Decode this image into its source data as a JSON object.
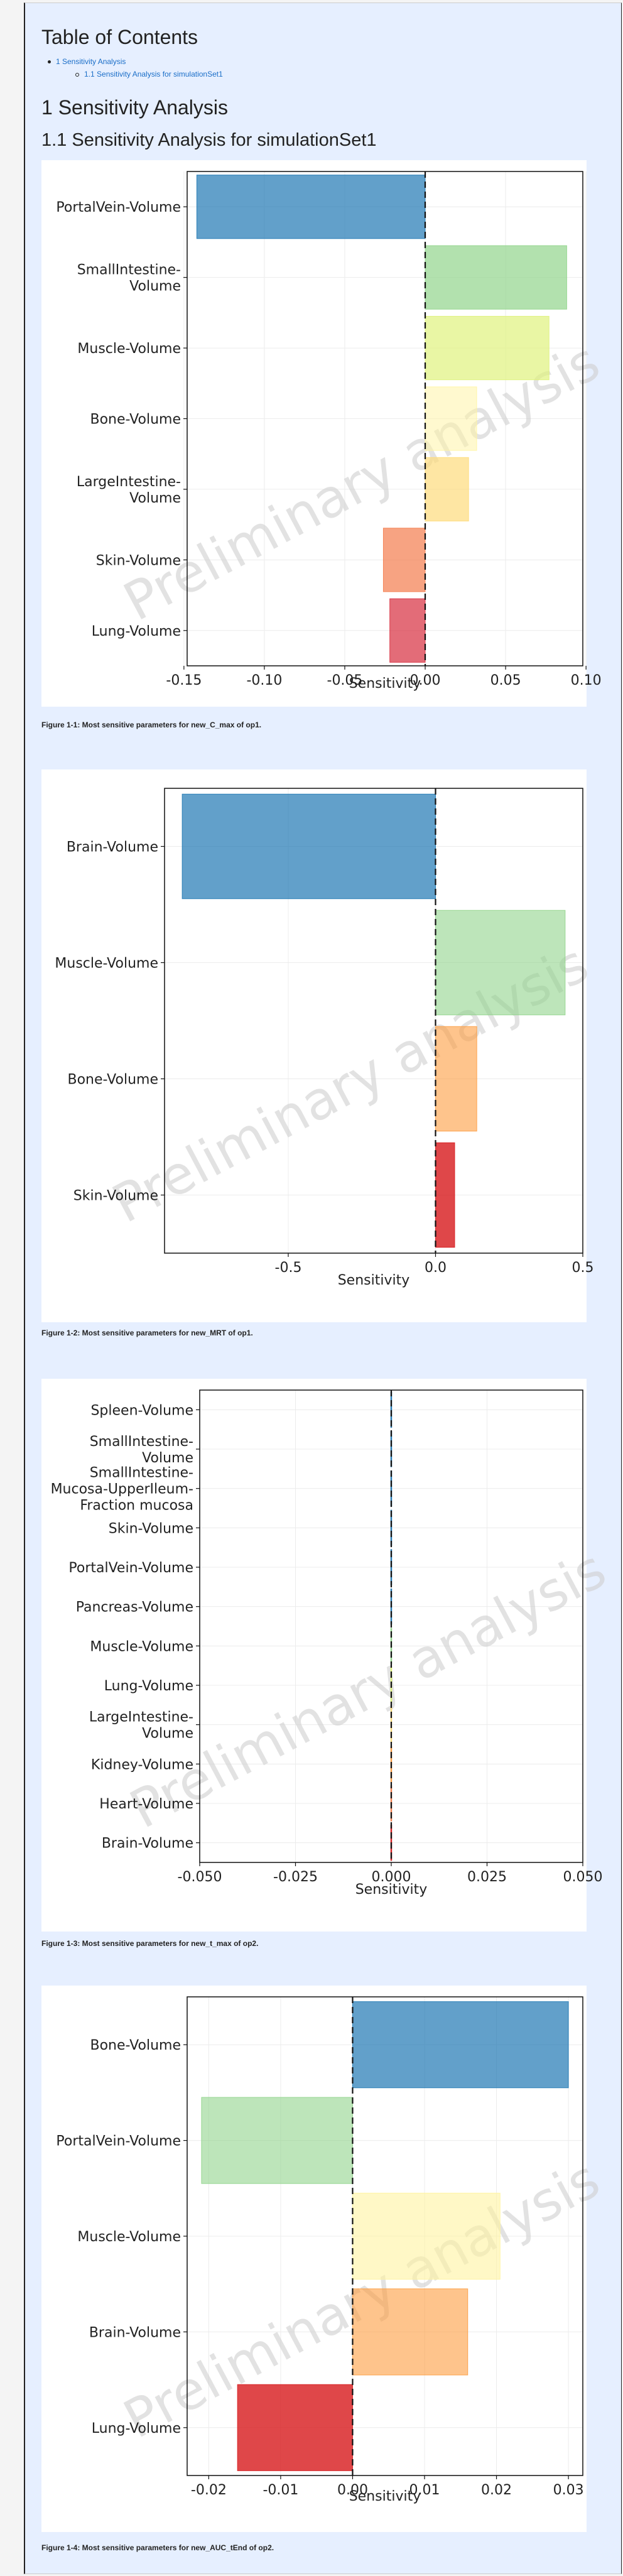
{
  "toc": {
    "title": "Table of Contents",
    "items": [
      {
        "label": "1 Sensitivity Analysis"
      },
      {
        "label": "1.1 Sensitivity Analysis for simulationSet1"
      }
    ]
  },
  "section": {
    "title": "1 Sensitivity Analysis"
  },
  "subsection": {
    "title": "1.1 Sensitivity Analysis for simulationSet1"
  },
  "watermark": "Preliminary analysis",
  "figures": [
    {
      "caption": "Figure 1-1: Most sensitive parameters for new_C_max of op1.",
      "xlabel": "Sensitivity",
      "chart_data": {
        "type": "bar",
        "orientation": "horizontal",
        "xlabel": "Sensitivity",
        "xlim": [
          -0.148,
          0.098
        ],
        "xticks": [
          -0.15,
          -0.1,
          -0.05,
          0.0,
          0.05,
          0.1
        ],
        "xtick_labels": [
          "-0.15",
          "-0.10",
          "-0.05",
          "0.00",
          "0.05",
          "0.10"
        ],
        "categories": [
          "PortalVein-Volume",
          "SmallIntestine-Volume",
          "Muscle-Volume",
          "Bone-Volume",
          "LargeIntestine-Volume",
          "Skin-Volume",
          "Lung-Volume"
        ],
        "category_labels": [
          [
            "PortalVein-Volume"
          ],
          [
            "SmallIntestine-",
            "Volume"
          ],
          [
            "Muscle-Volume"
          ],
          [
            "Bone-Volume"
          ],
          [
            "LargeIntestine-",
            "Volume"
          ],
          [
            "Skin-Volume"
          ],
          [
            "Lung-Volume"
          ]
        ],
        "values": [
          -0.142,
          0.088,
          0.077,
          0.032,
          0.027,
          -0.026,
          -0.022
        ],
        "colors": [
          "#1f78b4",
          "#91d48c",
          "#dff27d",
          "#fff4a0",
          "#fedc7c",
          "#f47c4d",
          "#d72e3f"
        ],
        "opacities": [
          0.7,
          0.7,
          0.7,
          0.5,
          0.7,
          0.7,
          0.7
        ],
        "grid": true
      }
    },
    {
      "caption": "Figure 1-2: Most sensitive parameters for new_MRT of op1.",
      "xlabel": "Sensitivity",
      "chart_data": {
        "type": "bar",
        "orientation": "horizontal",
        "xlabel": "Sensitivity",
        "xlim": [
          -0.92,
          0.5
        ],
        "xticks": [
          -0.5,
          0.0,
          0.5
        ],
        "xtick_labels": [
          "-0.5",
          "0.0",
          "0.5"
        ],
        "categories": [
          "Brain-Volume",
          "Muscle-Volume",
          "Bone-Volume",
          "Skin-Volume"
        ],
        "category_labels": [
          [
            "Brain-Volume"
          ],
          [
            "Muscle-Volume"
          ],
          [
            "Bone-Volume"
          ],
          [
            "Skin-Volume"
          ]
        ],
        "values": [
          -0.86,
          0.44,
          0.14,
          0.065
        ],
        "colors": [
          "#1f78b4",
          "#91d48c",
          "#fd9c3f",
          "#d7191c"
        ],
        "opacities": [
          0.7,
          0.6,
          0.6,
          0.8
        ],
        "grid": true
      }
    },
    {
      "caption": "Figure 1-3: Most sensitive parameters for new_t_max of op2.",
      "xlabel": "Sensitivity",
      "chart_data": {
        "type": "bar",
        "orientation": "horizontal",
        "xlabel": "Sensitivity",
        "xlim": [
          -0.05,
          0.05
        ],
        "xticks": [
          -0.05,
          -0.025,
          0.0,
          0.025,
          0.05
        ],
        "xtick_labels": [
          "-0.050",
          "-0.025",
          "0.000",
          "0.025",
          "0.050"
        ],
        "categories": [
          "Spleen-Volume",
          "SmallIntestine-Volume",
          "SmallIntestine-Mucosa-UpperIleum-Fraction mucosa",
          "Skin-Volume",
          "PortalVein-Volume",
          "Pancreas-Volume",
          "Muscle-Volume",
          "Lung-Volume",
          "LargeIntestine-Volume",
          "Kidney-Volume",
          "Heart-Volume",
          "Brain-Volume"
        ],
        "category_labels": [
          [
            "Spleen-Volume"
          ],
          [
            "SmallIntestine-",
            "Volume"
          ],
          [
            "SmallIntestine-",
            "Mucosa-UpperIleum-",
            "Fraction mucosa"
          ],
          [
            "Skin-Volume"
          ],
          [
            "PortalVein-Volume"
          ],
          [
            "Pancreas-Volume"
          ],
          [
            "Muscle-Volume"
          ],
          [
            "Lung-Volume"
          ],
          [
            "LargeIntestine-",
            "Volume"
          ],
          [
            "Kidney-Volume"
          ],
          [
            "Heart-Volume"
          ],
          [
            "Brain-Volume"
          ]
        ],
        "values": [
          0,
          0,
          0,
          0,
          0,
          0,
          0,
          0,
          0,
          0,
          0,
          0
        ],
        "colors": [
          "#1f78b4",
          "#1f78b4",
          "#1f78b4",
          "#1f78b4",
          "#1f78b4",
          "#1f78b4",
          "#91d48c",
          "#dff27d",
          "#fedc7c",
          "#fd9c3f",
          "#f47c4d",
          "#d7191c"
        ],
        "opacities": [
          1,
          1,
          1,
          1,
          1,
          1,
          1,
          1,
          1,
          1,
          1,
          1
        ],
        "grid": true
      }
    },
    {
      "caption": "Figure 1-4: Most sensitive parameters for new_AUC_tEnd of op2.",
      "xlabel": "Sensitivity",
      "chart_data": {
        "type": "bar",
        "orientation": "horizontal",
        "xlabel": "Sensitivity",
        "xlim": [
          -0.023,
          0.032
        ],
        "xticks": [
          -0.02,
          -0.01,
          0.0,
          0.01,
          0.02,
          0.03
        ],
        "xtick_labels": [
          "-0.02",
          "-0.01",
          "0.00",
          "0.01",
          "0.02",
          "0.03"
        ],
        "categories": [
          "Bone-Volume",
          "PortalVein-Volume",
          "Muscle-Volume",
          "Brain-Volume",
          "Lung-Volume"
        ],
        "category_labels": [
          [
            "Bone-Volume"
          ],
          [
            "PortalVein-Volume"
          ],
          [
            "Muscle-Volume"
          ],
          [
            "Brain-Volume"
          ],
          [
            "Lung-Volume"
          ]
        ],
        "values": [
          0.03,
          -0.021,
          0.0205,
          0.016,
          -0.016
        ],
        "colors": [
          "#1f78b4",
          "#91d48c",
          "#fff4a0",
          "#fd9c3f",
          "#d7191c"
        ],
        "opacities": [
          0.7,
          0.6,
          0.6,
          0.6,
          0.8
        ],
        "grid": true
      }
    }
  ]
}
